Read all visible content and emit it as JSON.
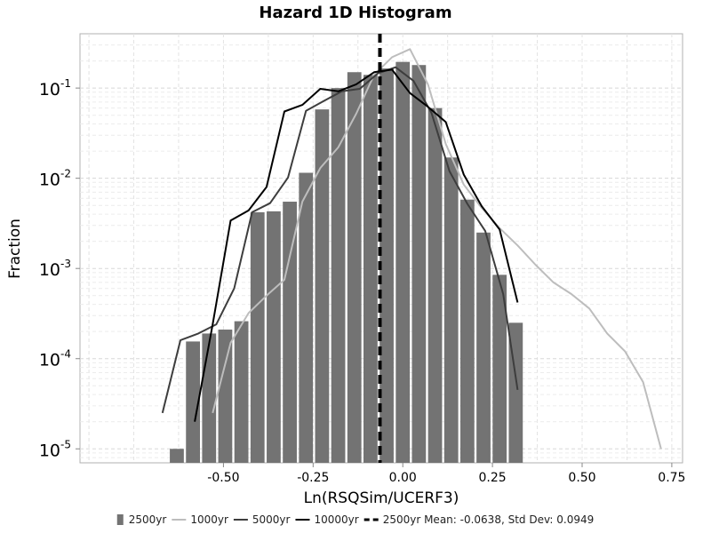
{
  "chart_data": {
    "type": "bar",
    "title": "Hazard 1D Histogram",
    "xlabel": "Ln(RSQSim/UCERF3)",
    "ylabel": "Fraction",
    "xlim": [
      -0.9,
      0.78
    ],
    "ylim": [
      7e-06,
      0.4
    ],
    "yscale": "log",
    "grid": true,
    "legend_placement": "bottom",
    "xticks": [
      -0.5,
      -0.25,
      0.0,
      0.25,
      0.5,
      0.75
    ],
    "xtick_labels": [
      "-0.50",
      "-0.25",
      "0.00",
      "0.25",
      "0.50",
      "0.75"
    ],
    "yticks": [
      1e-05,
      0.0001,
      0.001,
      0.01,
      0.1
    ],
    "ytick_labels": [
      {
        "base": "10",
        "exp": "-5"
      },
      {
        "base": "10",
        "exp": "-4"
      },
      {
        "base": "10",
        "exp": "-3"
      },
      {
        "base": "10",
        "exp": "-2"
      },
      {
        "base": "10",
        "exp": "-1"
      }
    ],
    "histogram": {
      "name": "2500yr",
      "color": "#737373",
      "bin_width": 0.045,
      "bin_centers": [
        -0.63,
        -0.585,
        -0.54,
        -0.495,
        -0.45,
        -0.405,
        -0.36,
        -0.315,
        -0.27,
        -0.225,
        -0.18,
        -0.135,
        -0.09,
        -0.045,
        0.0,
        0.045,
        0.09,
        0.135,
        0.18,
        0.225,
        0.27,
        0.315
      ],
      "values": [
        1e-05,
        0.000155,
        0.00019,
        0.00021,
        0.00026,
        0.0042,
        0.0043,
        0.0055,
        0.0115,
        0.058,
        0.1,
        0.15,
        0.14,
        0.165,
        0.195,
        0.18,
        0.06,
        0.017,
        0.0058,
        0.0025,
        0.00085,
        0.00025
      ]
    },
    "series": [
      {
        "name": "1000yr",
        "color": "#bdbdbd",
        "x": [
          -0.53,
          -0.48,
          -0.43,
          -0.38,
          -0.33,
          -0.28,
          -0.23,
          -0.18,
          -0.13,
          -0.08,
          -0.03,
          0.02,
          0.07,
          0.12,
          0.17,
          0.22,
          0.27,
          0.32,
          0.37,
          0.42,
          0.47,
          0.52,
          0.57,
          0.62,
          0.67,
          0.72
        ],
        "y": [
          2.5e-05,
          0.00015,
          0.00032,
          0.0005,
          0.00075,
          0.0055,
          0.013,
          0.022,
          0.052,
          0.14,
          0.22,
          0.27,
          0.11,
          0.024,
          0.0085,
          0.0047,
          0.0028,
          0.0018,
          0.0011,
          0.0007,
          0.00052,
          0.00036,
          0.00019,
          0.00012,
          5.5e-05,
          1e-05
        ]
      },
      {
        "name": "5000yr",
        "color": "#3d3d3d",
        "x": [
          -0.67,
          -0.62,
          -0.57,
          -0.52,
          -0.47,
          -0.42,
          -0.37,
          -0.32,
          -0.27,
          -0.22,
          -0.17,
          -0.12,
          -0.07,
          -0.02,
          0.03,
          0.08,
          0.13,
          0.18,
          0.23,
          0.28,
          0.32
        ],
        "y": [
          2.5e-05,
          0.00016,
          0.00019,
          0.00024,
          0.0006,
          0.0042,
          0.0053,
          0.0102,
          0.056,
          0.072,
          0.092,
          0.098,
          0.145,
          0.17,
          0.12,
          0.053,
          0.012,
          0.0052,
          0.0026,
          0.00052,
          4.5e-05
        ]
      },
      {
        "name": "10000yr",
        "color": "#000000",
        "x": [
          -0.58,
          -0.53,
          -0.48,
          -0.43,
          -0.38,
          -0.33,
          -0.28,
          -0.23,
          -0.18,
          -0.13,
          -0.08,
          -0.03,
          0.02,
          0.07,
          0.12,
          0.17,
          0.22,
          0.27,
          0.32
        ],
        "y": [
          2e-05,
          0.00024,
          0.0034,
          0.0044,
          0.008,
          0.055,
          0.065,
          0.098,
          0.092,
          0.11,
          0.15,
          0.16,
          0.088,
          0.062,
          0.042,
          0.011,
          0.0049,
          0.0027,
          0.00042
        ]
      }
    ],
    "mean_line": {
      "name": "2500yr Mean: -0.0638, Std Dev: 0.0949",
      "x": -0.0638,
      "color": "#000000"
    },
    "legend": [
      {
        "label": "2500yr",
        "kind": "bar",
        "color": "#737373"
      },
      {
        "label": "1000yr",
        "kind": "line",
        "color": "#bdbdbd"
      },
      {
        "label": "5000yr",
        "kind": "line",
        "color": "#3d3d3d"
      },
      {
        "label": "10000yr",
        "kind": "line",
        "color": "#000000"
      },
      {
        "label": "2500yr Mean: -0.0638, Std Dev: 0.0949",
        "kind": "dashed",
        "color": "#000000"
      }
    ]
  }
}
